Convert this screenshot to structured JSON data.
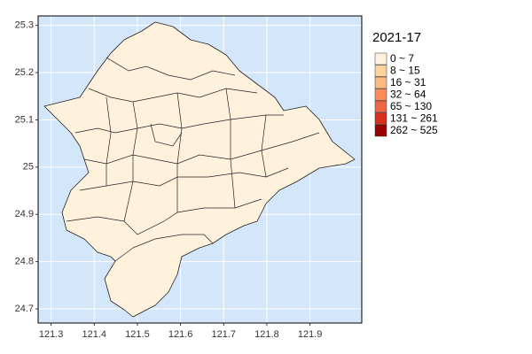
{
  "map": {
    "xlim": [
      121.27,
      122.02
    ],
    "ylim": [
      24.67,
      25.32
    ],
    "xticks": [
      121.3,
      121.4,
      121.5,
      121.6,
      121.7,
      121.8,
      121.9
    ],
    "yticks": [
      24.7,
      24.8,
      24.9,
      25.0,
      25.1,
      25.2,
      25.3
    ],
    "background": "#d4e6fa",
    "region_fill_class": 0,
    "legend": {
      "title": "2021-17",
      "items": [
        {
          "label": "0 ~ 7",
          "color": "#fff1dc"
        },
        {
          "label": "8 ~ 15",
          "color": "#fdd49e"
        },
        {
          "label": "16 ~ 31",
          "color": "#fdbb84"
        },
        {
          "label": "32 ~ 64",
          "color": "#fc8d59"
        },
        {
          "label": "65 ~ 130",
          "color": "#ef6548"
        },
        {
          "label": "131 ~ 261",
          "color": "#d7301f"
        },
        {
          "label": "262 ~ 525",
          "color": "#990000"
        }
      ]
    }
  }
}
